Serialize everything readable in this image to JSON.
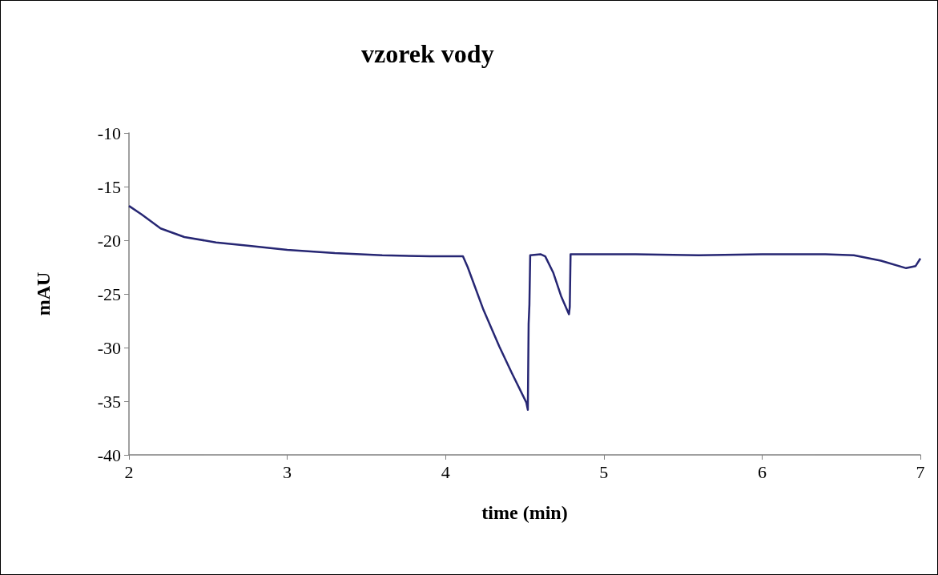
{
  "chart_data": {
    "type": "line",
    "title": "vzorek vody",
    "xlabel": "time (min)",
    "ylabel": "mAU",
    "series": [
      {
        "color": "#262673",
        "x": [
          2.0,
          2.08,
          2.2,
          2.35,
          2.55,
          2.75,
          3.0,
          3.3,
          3.6,
          3.9,
          4.11,
          4.14,
          4.24,
          4.34,
          4.42,
          4.51,
          4.52,
          4.525,
          4.53,
          4.535,
          4.6,
          4.63,
          4.68,
          4.73,
          4.78,
          4.785,
          4.79,
          5.2,
          5.6,
          6.0,
          6.4,
          6.58,
          6.75,
          6.91,
          6.97,
          7.0
        ],
        "values": [
          -16.8,
          -17.6,
          -18.9,
          -19.7,
          -20.2,
          -20.5,
          -20.9,
          -21.2,
          -21.4,
          -21.5,
          -21.5,
          -22.5,
          -26.5,
          -29.9,
          -32.4,
          -35.1,
          -35.8,
          -27.8,
          -26.0,
          -21.4,
          -21.3,
          -21.5,
          -23.0,
          -25.2,
          -26.9,
          -26.2,
          -21.3,
          -21.3,
          -21.4,
          -21.3,
          -21.3,
          -21.4,
          -21.9,
          -22.6,
          -22.4,
          -21.7
        ]
      }
    ],
    "xlim": [
      2,
      7
    ],
    "xticks": [
      2,
      3,
      4,
      5,
      6,
      7
    ],
    "ylim": [
      -40,
      -10
    ],
    "yticks": [
      -40,
      -35,
      -30,
      -25,
      -20,
      -15,
      -10
    ],
    "grid": false,
    "marker": "none",
    "line_style": "solid"
  }
}
